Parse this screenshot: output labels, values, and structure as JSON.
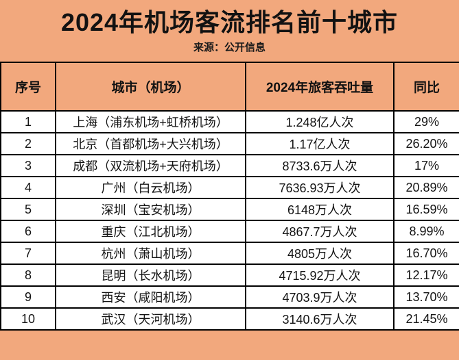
{
  "header": {
    "title": "2024年机场客流排名前十城市",
    "subtitle": "来源：公开信息"
  },
  "colors": {
    "background": "#F2A87D",
    "table_row_background": "#FFFFFF",
    "border": "#000000",
    "text": "#121212"
  },
  "chart_data": {
    "type": "table",
    "title": "2024年机场客流排名前十城市",
    "subtitle": "来源：公开信息",
    "columns": [
      "序号",
      "城市（机场）",
      "2024年旅客吞吐量",
      "同比"
    ],
    "rows": [
      [
        "1",
        "上海（浦东机场+虹桥机场）",
        "1.248亿人次",
        "29%"
      ],
      [
        "2",
        "北京（首都机场+大兴机场）",
        "1.17亿人次",
        "26.20%"
      ],
      [
        "3",
        "成都（双流机场+天府机场）",
        "8733.6万人次",
        "17%"
      ],
      [
        "4",
        "广州（白云机场）",
        "7636.93万人次",
        "20.89%"
      ],
      [
        "5",
        "深圳（宝安机场）",
        "6148万人次",
        "16.59%"
      ],
      [
        "6",
        "重庆（江北机场）",
        "4867.7万人次",
        "8.99%"
      ],
      [
        "7",
        "杭州（萧山机场）",
        "4805万人次",
        "16.70%"
      ],
      [
        "8",
        "昆明（长水机场）",
        "4715.92万人次",
        "12.17%"
      ],
      [
        "9",
        "西安（咸阳机场）",
        "4703.9万人次",
        "13.70%"
      ],
      [
        "10",
        "武汉（天河机场）",
        "3140.6万人次",
        "21.45%"
      ]
    ]
  }
}
